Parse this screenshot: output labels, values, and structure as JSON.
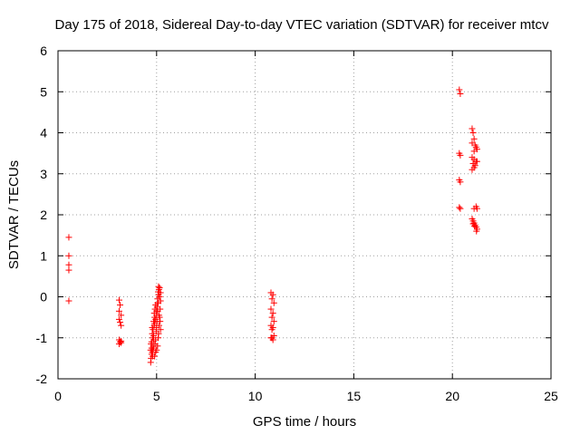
{
  "chart_data": {
    "type": "scatter",
    "title": "Day 175 of 2018, Sidereal Day-to-day VTEC variation (SDTVAR) for receiver mtcv",
    "xlabel": "GPS time / hours",
    "ylabel": "SDTVAR / TECUs",
    "xlim": [
      0,
      25
    ],
    "ylim": [
      -2,
      6
    ],
    "xticks": [
      0,
      5,
      10,
      15,
      20,
      25
    ],
    "yticks": [
      -2,
      -1,
      0,
      1,
      2,
      3,
      4,
      5,
      6
    ],
    "grid": true,
    "marker": "+",
    "color": "#ff0000",
    "series": [
      {
        "name": "SDTVAR",
        "points": [
          [
            0.55,
            1.45
          ],
          [
            0.55,
            1.0
          ],
          [
            0.55,
            0.78
          ],
          [
            0.55,
            0.65
          ],
          [
            0.55,
            -0.1
          ],
          [
            3.1,
            -0.08
          ],
          [
            3.15,
            -0.2
          ],
          [
            3.1,
            -0.35
          ],
          [
            3.2,
            -0.45
          ],
          [
            3.1,
            -0.55
          ],
          [
            3.15,
            -0.62
          ],
          [
            3.2,
            -0.7
          ],
          [
            3.1,
            -1.05
          ],
          [
            3.15,
            -1.1
          ],
          [
            3.2,
            -1.12
          ],
          [
            3.1,
            -1.15
          ],
          [
            3.2,
            -1.08
          ],
          [
            4.7,
            -1.6
          ],
          [
            4.72,
            -1.5
          ],
          [
            4.75,
            -1.4
          ],
          [
            4.78,
            -1.35
          ],
          [
            4.8,
            -1.3
          ],
          [
            4.82,
            -1.2
          ],
          [
            4.75,
            -1.1
          ],
          [
            4.8,
            -1.0
          ],
          [
            4.85,
            -0.95
          ],
          [
            4.78,
            -0.9
          ],
          [
            4.82,
            -0.8
          ],
          [
            4.88,
            -0.7
          ],
          [
            4.85,
            -0.6
          ],
          [
            4.9,
            -0.5
          ],
          [
            4.88,
            -0.4
          ],
          [
            4.92,
            -0.3
          ],
          [
            4.95,
            -0.2
          ],
          [
            4.9,
            -1.45
          ],
          [
            4.85,
            -1.25
          ],
          [
            4.92,
            -1.15
          ],
          [
            4.95,
            -1.05
          ],
          [
            4.98,
            -0.85
          ],
          [
            5.0,
            -0.75
          ],
          [
            5.02,
            -0.6
          ],
          [
            5.0,
            -0.45
          ],
          [
            5.05,
            -0.35
          ],
          [
            5.02,
            -0.25
          ],
          [
            5.08,
            -0.15
          ],
          [
            5.05,
            -0.05
          ],
          [
            5.1,
            0.05
          ],
          [
            5.08,
            0.12
          ],
          [
            5.12,
            0.18
          ],
          [
            5.15,
            0.22
          ],
          [
            5.1,
            0.25
          ],
          [
            5.0,
            -1.3
          ],
          [
            4.95,
            -1.35
          ],
          [
            5.05,
            -1.2
          ],
          [
            5.08,
            -1.0
          ],
          [
            5.1,
            -0.9
          ],
          [
            5.12,
            -0.7
          ],
          [
            5.15,
            -0.5
          ],
          [
            5.18,
            -0.3
          ],
          [
            5.2,
            -0.1
          ],
          [
            5.15,
            0.0
          ],
          [
            5.2,
            0.1
          ],
          [
            4.8,
            -1.45
          ],
          [
            4.75,
            -1.25
          ],
          [
            4.85,
            -1.05
          ],
          [
            4.9,
            -0.65
          ],
          [
            4.95,
            -0.55
          ],
          [
            5.0,
            -0.35
          ],
          [
            5.05,
            -0.15
          ],
          [
            5.12,
            -0.45
          ],
          [
            5.18,
            -0.6
          ],
          [
            5.2,
            -0.8
          ],
          [
            4.7,
            -1.3
          ],
          [
            4.72,
            -1.15
          ],
          [
            4.78,
            -0.75
          ],
          [
            10.8,
            0.1
          ],
          [
            10.9,
            0.05
          ],
          [
            10.85,
            -0.05
          ],
          [
            10.95,
            -0.15
          ],
          [
            10.8,
            -0.3
          ],
          [
            10.9,
            -0.4
          ],
          [
            10.85,
            -0.5
          ],
          [
            10.95,
            -0.6
          ],
          [
            10.8,
            -0.7
          ],
          [
            10.9,
            -0.75
          ],
          [
            10.85,
            -0.8
          ],
          [
            10.95,
            -0.95
          ],
          [
            10.8,
            -1.0
          ],
          [
            10.9,
            -1.05
          ],
          [
            10.85,
            -1.0
          ],
          [
            20.35,
            5.05
          ],
          [
            20.4,
            4.95
          ],
          [
            20.35,
            3.5
          ],
          [
            20.4,
            3.45
          ],
          [
            20.35,
            2.85
          ],
          [
            20.4,
            2.8
          ],
          [
            20.35,
            2.18
          ],
          [
            20.4,
            2.15
          ],
          [
            21.0,
            4.1
          ],
          [
            21.05,
            4.0
          ],
          [
            21.1,
            3.85
          ],
          [
            21.0,
            3.75
          ],
          [
            21.15,
            3.7
          ],
          [
            21.2,
            3.65
          ],
          [
            21.1,
            3.55
          ],
          [
            21.25,
            3.6
          ],
          [
            21.0,
            3.4
          ],
          [
            21.1,
            3.35
          ],
          [
            21.2,
            3.3
          ],
          [
            21.05,
            3.25
          ],
          [
            21.15,
            3.2
          ],
          [
            21.25,
            3.3
          ],
          [
            21.1,
            3.15
          ],
          [
            21.0,
            3.1
          ],
          [
            21.2,
            2.2
          ],
          [
            21.1,
            2.15
          ],
          [
            21.25,
            2.15
          ],
          [
            21.0,
            1.9
          ],
          [
            21.05,
            1.85
          ],
          [
            21.1,
            1.8
          ],
          [
            21.15,
            1.75
          ],
          [
            21.2,
            1.7
          ],
          [
            21.25,
            1.65
          ],
          [
            21.22,
            1.6
          ],
          [
            21.05,
            1.78
          ],
          [
            21.12,
            1.72
          ]
        ]
      }
    ]
  }
}
